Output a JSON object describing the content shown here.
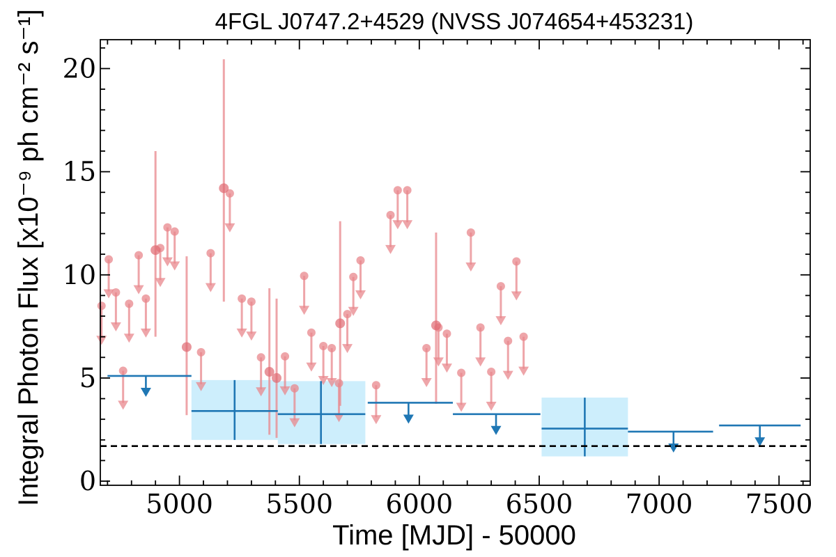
{
  "chart_data": {
    "type": "scatter",
    "title": "4FGL J0747.2+4529 (NVSS J074654+453231)",
    "xlabel": "Time [MJD] - 50000",
    "ylabel": "Integral Photon Flux [x10⁻⁹ ph cm⁻² s⁻¹]",
    "xlim": [
      4670,
      7630
    ],
    "ylim": [
      -0.2,
      21.4
    ],
    "xticks": [
      5000,
      5500,
      6000,
      6500,
      7000,
      7500
    ],
    "xtick_labels": [
      "5000",
      "5500",
      "6000",
      "6500",
      "7000",
      "7500"
    ],
    "yticks": [
      0,
      5,
      10,
      15,
      20
    ],
    "ytick_labels": [
      "0",
      "5",
      "10",
      "15",
      "20"
    ],
    "grid": false,
    "colors": {
      "short_bins": "#e8878c",
      "long_bins": "#1f77b4",
      "long_bin_band": "#cdeefc",
      "reference_line": "#000000"
    },
    "short_bin_upper_limits": [
      {
        "x": 4675,
        "y": 8.5
      },
      {
        "x": 4705,
        "y": 10.75
      },
      {
        "x": 4735,
        "y": 9.15
      },
      {
        "x": 4765,
        "y": 5.35
      },
      {
        "x": 4790,
        "y": 8.6
      },
      {
        "x": 4830,
        "y": 10.95
      },
      {
        "x": 4860,
        "y": 8.85
      },
      {
        "x": 4920,
        "y": 11.3
      },
      {
        "x": 4950,
        "y": 12.3
      },
      {
        "x": 4980,
        "y": 12.1
      },
      {
        "x": 5090,
        "y": 6.25
      },
      {
        "x": 5130,
        "y": 11.05
      },
      {
        "x": 5210,
        "y": 13.95
      },
      {
        "x": 5260,
        "y": 8.85
      },
      {
        "x": 5300,
        "y": 8.7
      },
      {
        "x": 5340,
        "y": 6.0
      },
      {
        "x": 5440,
        "y": 6.05
      },
      {
        "x": 5480,
        "y": 4.5
      },
      {
        "x": 5520,
        "y": 9.95
      },
      {
        "x": 5550,
        "y": 7.2
      },
      {
        "x": 5600,
        "y": 6.55
      },
      {
        "x": 5635,
        "y": 6.45
      },
      {
        "x": 5665,
        "y": 4.75
      },
      {
        "x": 5700,
        "y": 8.1
      },
      {
        "x": 5725,
        "y": 9.9
      },
      {
        "x": 5755,
        "y": 10.7
      },
      {
        "x": 5820,
        "y": 4.65
      },
      {
        "x": 5880,
        "y": 12.9
      },
      {
        "x": 5910,
        "y": 14.1
      },
      {
        "x": 5950,
        "y": 14.1
      },
      {
        "x": 6030,
        "y": 6.45
      },
      {
        "x": 6080,
        "y": 7.45
      },
      {
        "x": 6115,
        "y": 7.15
      },
      {
        "x": 6175,
        "y": 5.25
      },
      {
        "x": 6215,
        "y": 12.05
      },
      {
        "x": 6255,
        "y": 7.45
      },
      {
        "x": 6300,
        "y": 5.3
      },
      {
        "x": 6340,
        "y": 9.45
      },
      {
        "x": 6370,
        "y": 6.8
      },
      {
        "x": 6405,
        "y": 10.65
      },
      {
        "x": 6435,
        "y": 7.0
      }
    ],
    "short_bin_detections": [
      {
        "x": 4900,
        "y": 11.2,
        "err_low": 4.2,
        "err_high": 4.8
      },
      {
        "x": 5030,
        "y": 6.5,
        "err_low": 3.3,
        "err_high": 4.4
      },
      {
        "x": 5185,
        "y": 14.2,
        "err_low": 5.5,
        "err_high": 6.25
      },
      {
        "x": 5375,
        "y": 5.3,
        "err_low": 3.05,
        "err_high": 4.05
      },
      {
        "x": 5405,
        "y": 5.0,
        "err_low": 2.9,
        "err_high": 3.85
      },
      {
        "x": 5670,
        "y": 7.65,
        "err_low": 4.0,
        "err_high": 4.95
      },
      {
        "x": 6070,
        "y": 7.55,
        "err_low": 3.8,
        "err_high": 4.5
      }
    ],
    "long_bin_upper_limits": [
      {
        "x_start": 4700,
        "x_end": 5050,
        "y": 5.1,
        "arrow_x": 4860
      },
      {
        "x_start": 5785,
        "x_end": 6140,
        "y": 3.8,
        "arrow_x": 5955
      },
      {
        "x_start": 6140,
        "x_end": 6505,
        "y": 3.25,
        "arrow_x": 6320
      },
      {
        "x_start": 6870,
        "x_end": 7225,
        "y": 2.4,
        "arrow_x": 7060
      },
      {
        "x_start": 7250,
        "x_end": 7590,
        "y": 2.7,
        "arrow_x": 7420
      }
    ],
    "long_bin_detections": [
      {
        "x": 5230,
        "x_start": 5050,
        "x_end": 5410,
        "y": 3.4,
        "y_low": 2.0,
        "y_high": 4.9
      },
      {
        "x": 5590,
        "x_start": 5410,
        "x_end": 5775,
        "y": 3.25,
        "y_low": 1.8,
        "y_high": 4.85
      },
      {
        "x": 6690,
        "x_start": 6510,
        "x_end": 6870,
        "y": 2.55,
        "y_low": 1.2,
        "y_high": 4.05
      }
    ],
    "reference_line": {
      "y": 1.7,
      "style": "dashed"
    }
  }
}
